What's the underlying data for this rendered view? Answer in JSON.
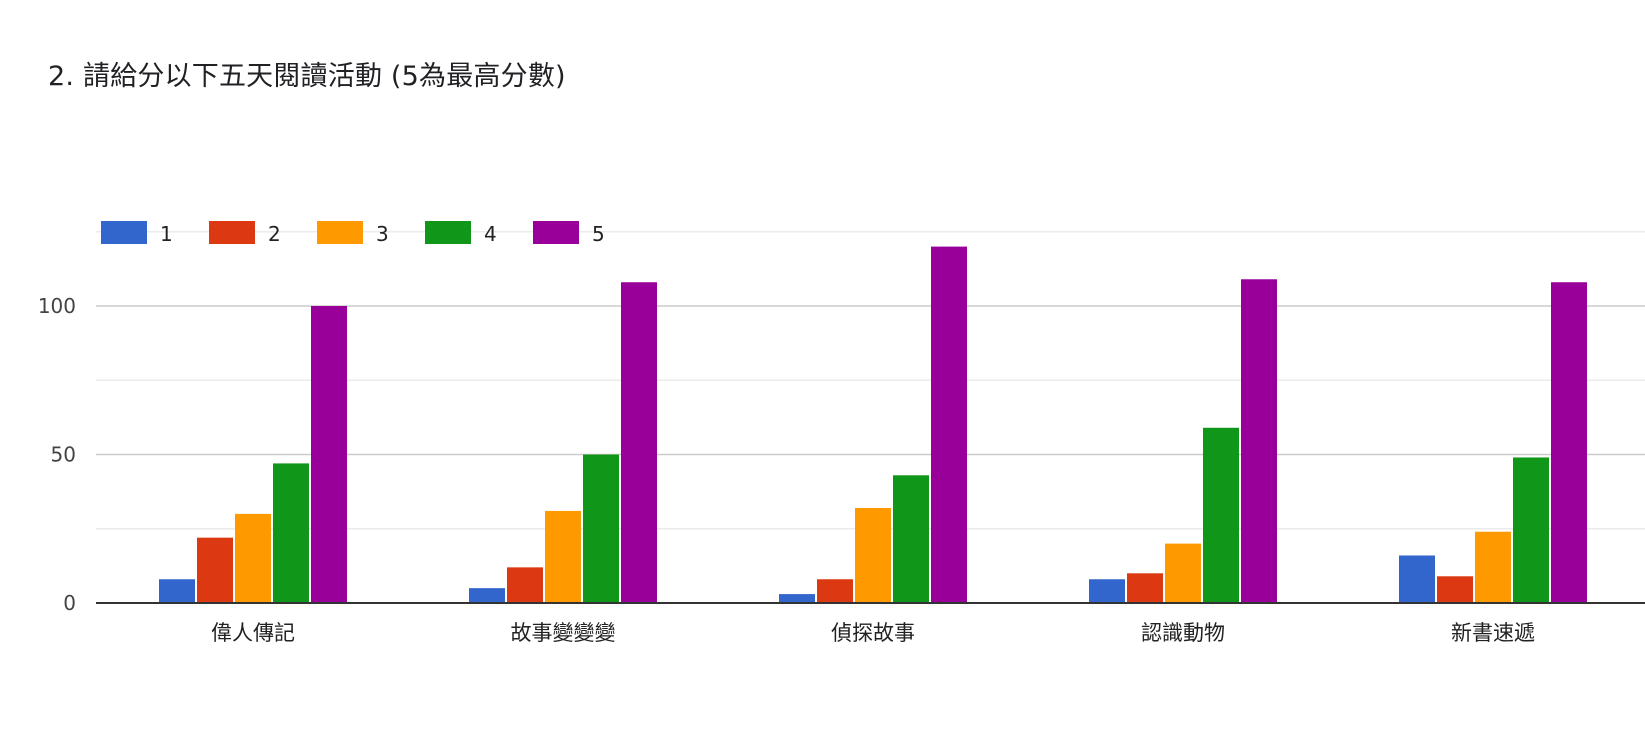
{
  "title": "2. 請給分以下五天閱讀活動 (5為最高分數)",
  "chart_data": {
    "type": "bar",
    "categories": [
      "偉人傳記",
      "故事變變變",
      "偵探故事",
      "認識動物",
      "新書速遞"
    ],
    "series": [
      {
        "name": "1",
        "color": "#3366cc",
        "values": [
          8,
          5,
          3,
          8,
          16
        ]
      },
      {
        "name": "2",
        "color": "#dc3912",
        "values": [
          22,
          12,
          8,
          10,
          9
        ]
      },
      {
        "name": "3",
        "color": "#ff9900",
        "values": [
          30,
          31,
          32,
          20,
          24
        ]
      },
      {
        "name": "4",
        "color": "#109618",
        "values": [
          47,
          50,
          43,
          59,
          49
        ]
      },
      {
        "name": "5",
        "color": "#990099",
        "values": [
          100,
          108,
          120,
          109,
          108
        ]
      }
    ],
    "yticks": [
      0,
      50,
      100
    ],
    "ylim": [
      0,
      125
    ],
    "grid": true,
    "legend_position": "top-left"
  }
}
